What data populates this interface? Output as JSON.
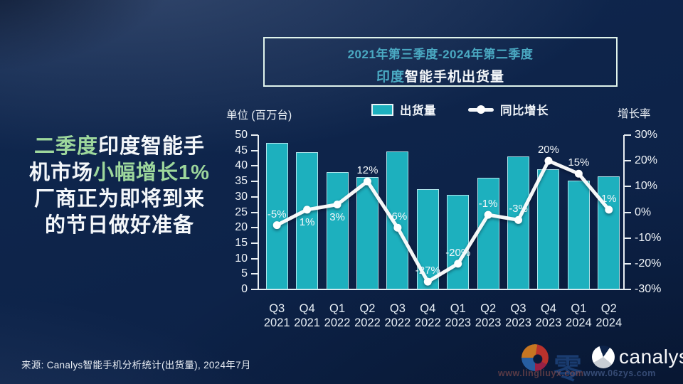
{
  "title_box": {
    "line1": "2021年第三季度-2024年第二季度",
    "line2_accent": "印度",
    "line2_rest": "智能手机出货量"
  },
  "headline": {
    "lines": [
      [
        {
          "t": "二季度",
          "c": "g"
        },
        {
          "t": "印度智能手",
          "c": "w"
        }
      ],
      [
        {
          "t": "机市场",
          "c": "w"
        },
        {
          "t": "小幅增长1%",
          "c": "g"
        }
      ],
      [
        {
          "t": "厂商正为即将到来",
          "c": "w"
        }
      ],
      [
        {
          "t": "的节日做好准备",
          "c": "w"
        }
      ]
    ],
    "accent_color": "#9dd79c"
  },
  "chart_data": {
    "type": "bar",
    "categories": [
      "Q3 2021",
      "Q4 2021",
      "Q1 2022",
      "Q2 2022",
      "Q3 2022",
      "Q4 2022",
      "Q1 2023",
      "Q2 2023",
      "Q3 2023",
      "Q4 2023",
      "Q1 2024",
      "Q2 2024"
    ],
    "series": [
      {
        "name": "出货量",
        "type": "bar",
        "values": [
          47.5,
          44.5,
          38,
          36.4,
          44.6,
          32.4,
          30.6,
          36.1,
          43,
          38.9,
          35.3,
          36.6
        ]
      },
      {
        "name": "同比增长",
        "type": "line",
        "values": [
          -5,
          1,
          3,
          12,
          -6,
          -27,
          -20,
          -1,
          -3,
          20,
          15,
          1
        ],
        "labels": [
          "-5%",
          "1%",
          "3%",
          "12%",
          "-6%",
          "-27%",
          "-20%",
          "-1%",
          "-3%",
          "20%",
          "15%",
          "1%"
        ]
      }
    ],
    "left_axis": {
      "label": "单位 (百万台)",
      "min": 0,
      "max": 50,
      "step": 5,
      "ticks": [
        0,
        5,
        10,
        15,
        20,
        25,
        30,
        35,
        40,
        45,
        50
      ]
    },
    "right_axis": {
      "label": "增长率",
      "min": -30,
      "max": 30,
      "step": 10,
      "ticks": [
        "30%",
        "20%",
        "10%",
        "0%",
        "-10%",
        "-20%",
        "-30%"
      ],
      "tick_values": [
        30,
        20,
        10,
        0,
        -10,
        -20,
        -30
      ]
    },
    "legend_position": "top",
    "grid": false,
    "colors": {
      "bar": "#1db0be",
      "line": "#ffffff"
    }
  },
  "footer": {
    "source": "来源: Canalys智能手机分析统计(出货量), 2024年7月",
    "brand": "canalys",
    "watermark_char": "零",
    "watermark_url1": "www.lingliuyx.com",
    "watermark_url2": "www.06zys.com"
  }
}
